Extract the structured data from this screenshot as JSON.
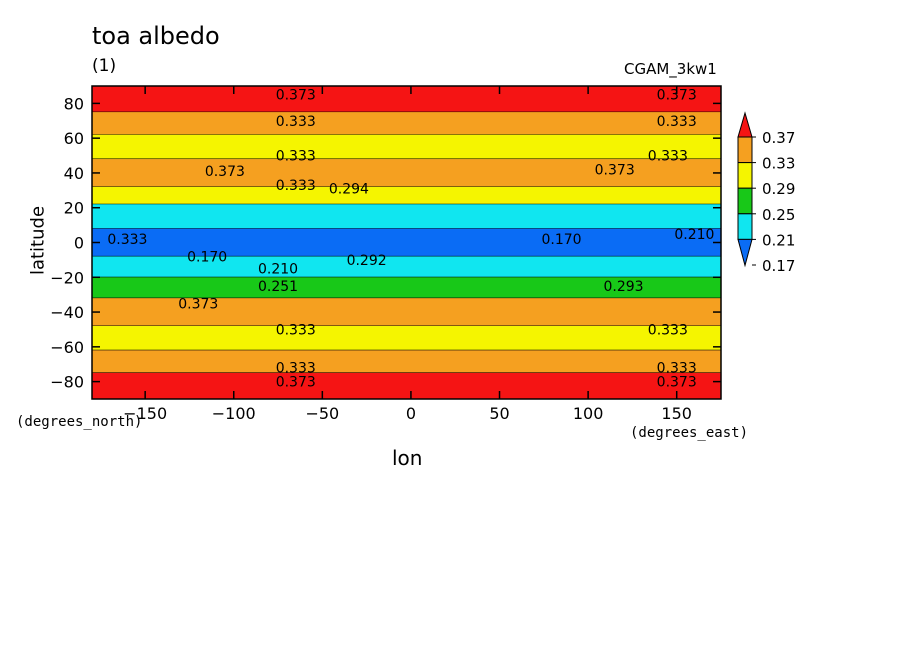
{
  "chart_data": {
    "type": "heatmap",
    "title": "toa albedo",
    "subtitle": "(1)",
    "run_label": "CGAM_3kw1",
    "xlabel": "lon",
    "ylabel": "latitude",
    "x_units": "(degrees_east)",
    "y_units": "(degrees_north)",
    "xlim": [
      -180,
      175
    ],
    "ylim": [
      -90,
      90
    ],
    "x_ticks": [
      -150,
      -100,
      -50,
      0,
      50,
      100,
      150
    ],
    "y_ticks": [
      -80,
      -60,
      -40,
      -20,
      0,
      20,
      40,
      60,
      80
    ],
    "colorbar": {
      "levels": [
        0.17,
        0.21,
        0.25,
        0.29,
        0.33,
        0.37
      ],
      "colors": [
        "#0a6cf5",
        "#10e6f0",
        "#18c818",
        "#f5f500",
        "#f5a020",
        "#f51414"
      ]
    },
    "bands": [
      {
        "lat_from": 75,
        "lat_to": 90,
        "value": 0.38
      },
      {
        "lat_from": 62,
        "lat_to": 75,
        "value": 0.34
      },
      {
        "lat_from": 48,
        "lat_to": 62,
        "value": 0.31
      },
      {
        "lat_from": 32,
        "lat_to": 48,
        "value": 0.35
      },
      {
        "lat_from": 22,
        "lat_to": 32,
        "value": 0.31
      },
      {
        "lat_from": 8,
        "lat_to": 22,
        "value": 0.22
      },
      {
        "lat_from": -8,
        "lat_to": 8,
        "value": 0.19
      },
      {
        "lat_from": -20,
        "lat_to": -8,
        "value": 0.21
      },
      {
        "lat_from": -32,
        "lat_to": -20,
        "value": 0.27
      },
      {
        "lat_from": -48,
        "lat_to": -32,
        "value": 0.35
      },
      {
        "lat_from": -62,
        "lat_to": -48,
        "value": 0.31
      },
      {
        "lat_from": -75,
        "lat_to": -62,
        "value": 0.34
      },
      {
        "lat_from": -90,
        "lat_to": -75,
        "value": 0.38
      }
    ],
    "contour_labels": [
      {
        "lon": -65,
        "lat": 85,
        "text": "0.373"
      },
      {
        "lon": 150,
        "lat": 85,
        "text": "0.373"
      },
      {
        "lon": -65,
        "lat": 70,
        "text": "0.333"
      },
      {
        "lon": 150,
        "lat": 70,
        "text": "0.333"
      },
      {
        "lon": -65,
        "lat": 50,
        "text": "0.333"
      },
      {
        "lon": 145,
        "lat": 50,
        "text": "0.333"
      },
      {
        "lon": -105,
        "lat": 41,
        "text": "0.373"
      },
      {
        "lon": 115,
        "lat": 42,
        "text": "0.373"
      },
      {
        "lon": -65,
        "lat": 33,
        "text": "0.333"
      },
      {
        "lon": -35,
        "lat": 31,
        "text": "0.294"
      },
      {
        "lon": -160,
        "lat": 2,
        "text": "0.333"
      },
      {
        "lon": -115,
        "lat": -8,
        "text": "0.170"
      },
      {
        "lon": -25,
        "lat": -10,
        "text": "0.292"
      },
      {
        "lon": -75,
        "lat": -15,
        "text": "0.210"
      },
      {
        "lon": 85,
        "lat": 2,
        "text": "0.170"
      },
      {
        "lon": 160,
        "lat": 5,
        "text": "0.210"
      },
      {
        "lon": -120,
        "lat": -35,
        "text": "0.373"
      },
      {
        "lon": -75,
        "lat": -25,
        "text": "0.251"
      },
      {
        "lon": 120,
        "lat": -25,
        "text": "0.293"
      },
      {
        "lon": -65,
        "lat": -50,
        "text": "0.333"
      },
      {
        "lon": 145,
        "lat": -50,
        "text": "0.333"
      },
      {
        "lon": -65,
        "lat": -72,
        "text": "0.333"
      },
      {
        "lon": 150,
        "lat": -72,
        "text": "0.333"
      },
      {
        "lon": -65,
        "lat": -80,
        "text": "0.373"
      },
      {
        "lon": 150,
        "lat": -80,
        "text": "0.373"
      }
    ],
    "grid": false,
    "legend": "right"
  }
}
